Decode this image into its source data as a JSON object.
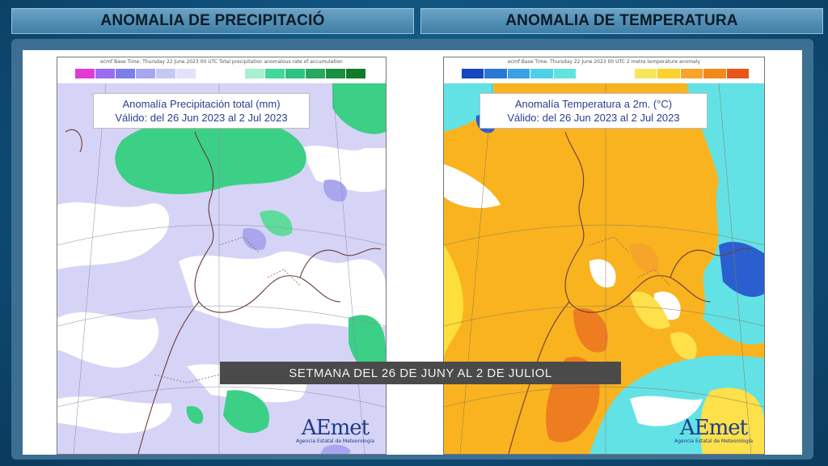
{
  "headers": {
    "left": "ANOMALIA DE PRECIPITACIÓ",
    "right": "ANOMALIA DE TEMPERATURA"
  },
  "precip_panel": {
    "meta_line": "ecmf  Base Time: Thursday 22 June 2023 00 UTC  Total precipitation anomalous rate of accumulation",
    "title_line1": "Anomalía Precipitación total (mm)",
    "title_line2": "Válido: del 26 Jun 2023 al 2 Jul 2023",
    "negative_colors": [
      "#e23ad6",
      "#9a6cf0",
      "#7d7ee8",
      "#a7a6ef",
      "#c7c7f4",
      "#e2e2fa"
    ],
    "positive_colors": [
      "#a8f0d0",
      "#41d89a",
      "#2cc27f",
      "#26a860",
      "#1a8f40",
      "#137a2c"
    ],
    "colors": {
      "land_dry": "#c9c8f3",
      "ocean_dry": "#dcdaf7",
      "wet": "#3ccf86",
      "neutral": "#ffffff"
    }
  },
  "temp_panel": {
    "meta_line": "ecmf  Base Time: Thursday 22 June 2023 00 UTC  2 metre temperature anomaly",
    "title_line1": "Anomalía Temperatura a 2m. (°C)",
    "title_line2": "Válido: del 26 Jun 2023 al 2 Jul 2023",
    "cold_colors": [
      "#1646c0",
      "#2a78d6",
      "#3ba0e6",
      "#4cd0e8",
      "#5fe3e0"
    ],
    "warm_colors": [
      "#f7e65c",
      "#fbd12a",
      "#f7a52a",
      "#f28a1a",
      "#e8561a"
    ],
    "colors": {
      "warm": "#f9b31f",
      "hot": "#ee7d22",
      "cool": "#63e2e6",
      "cold": "#2b5fd0",
      "neutral": "#ffffff"
    }
  },
  "logo": {
    "text": "AEmet",
    "subtitle": "Agencia Estatal de Meteorología"
  },
  "banner": "SETMANA DEL 26 DE JUNY AL 2 DE JULIOL"
}
